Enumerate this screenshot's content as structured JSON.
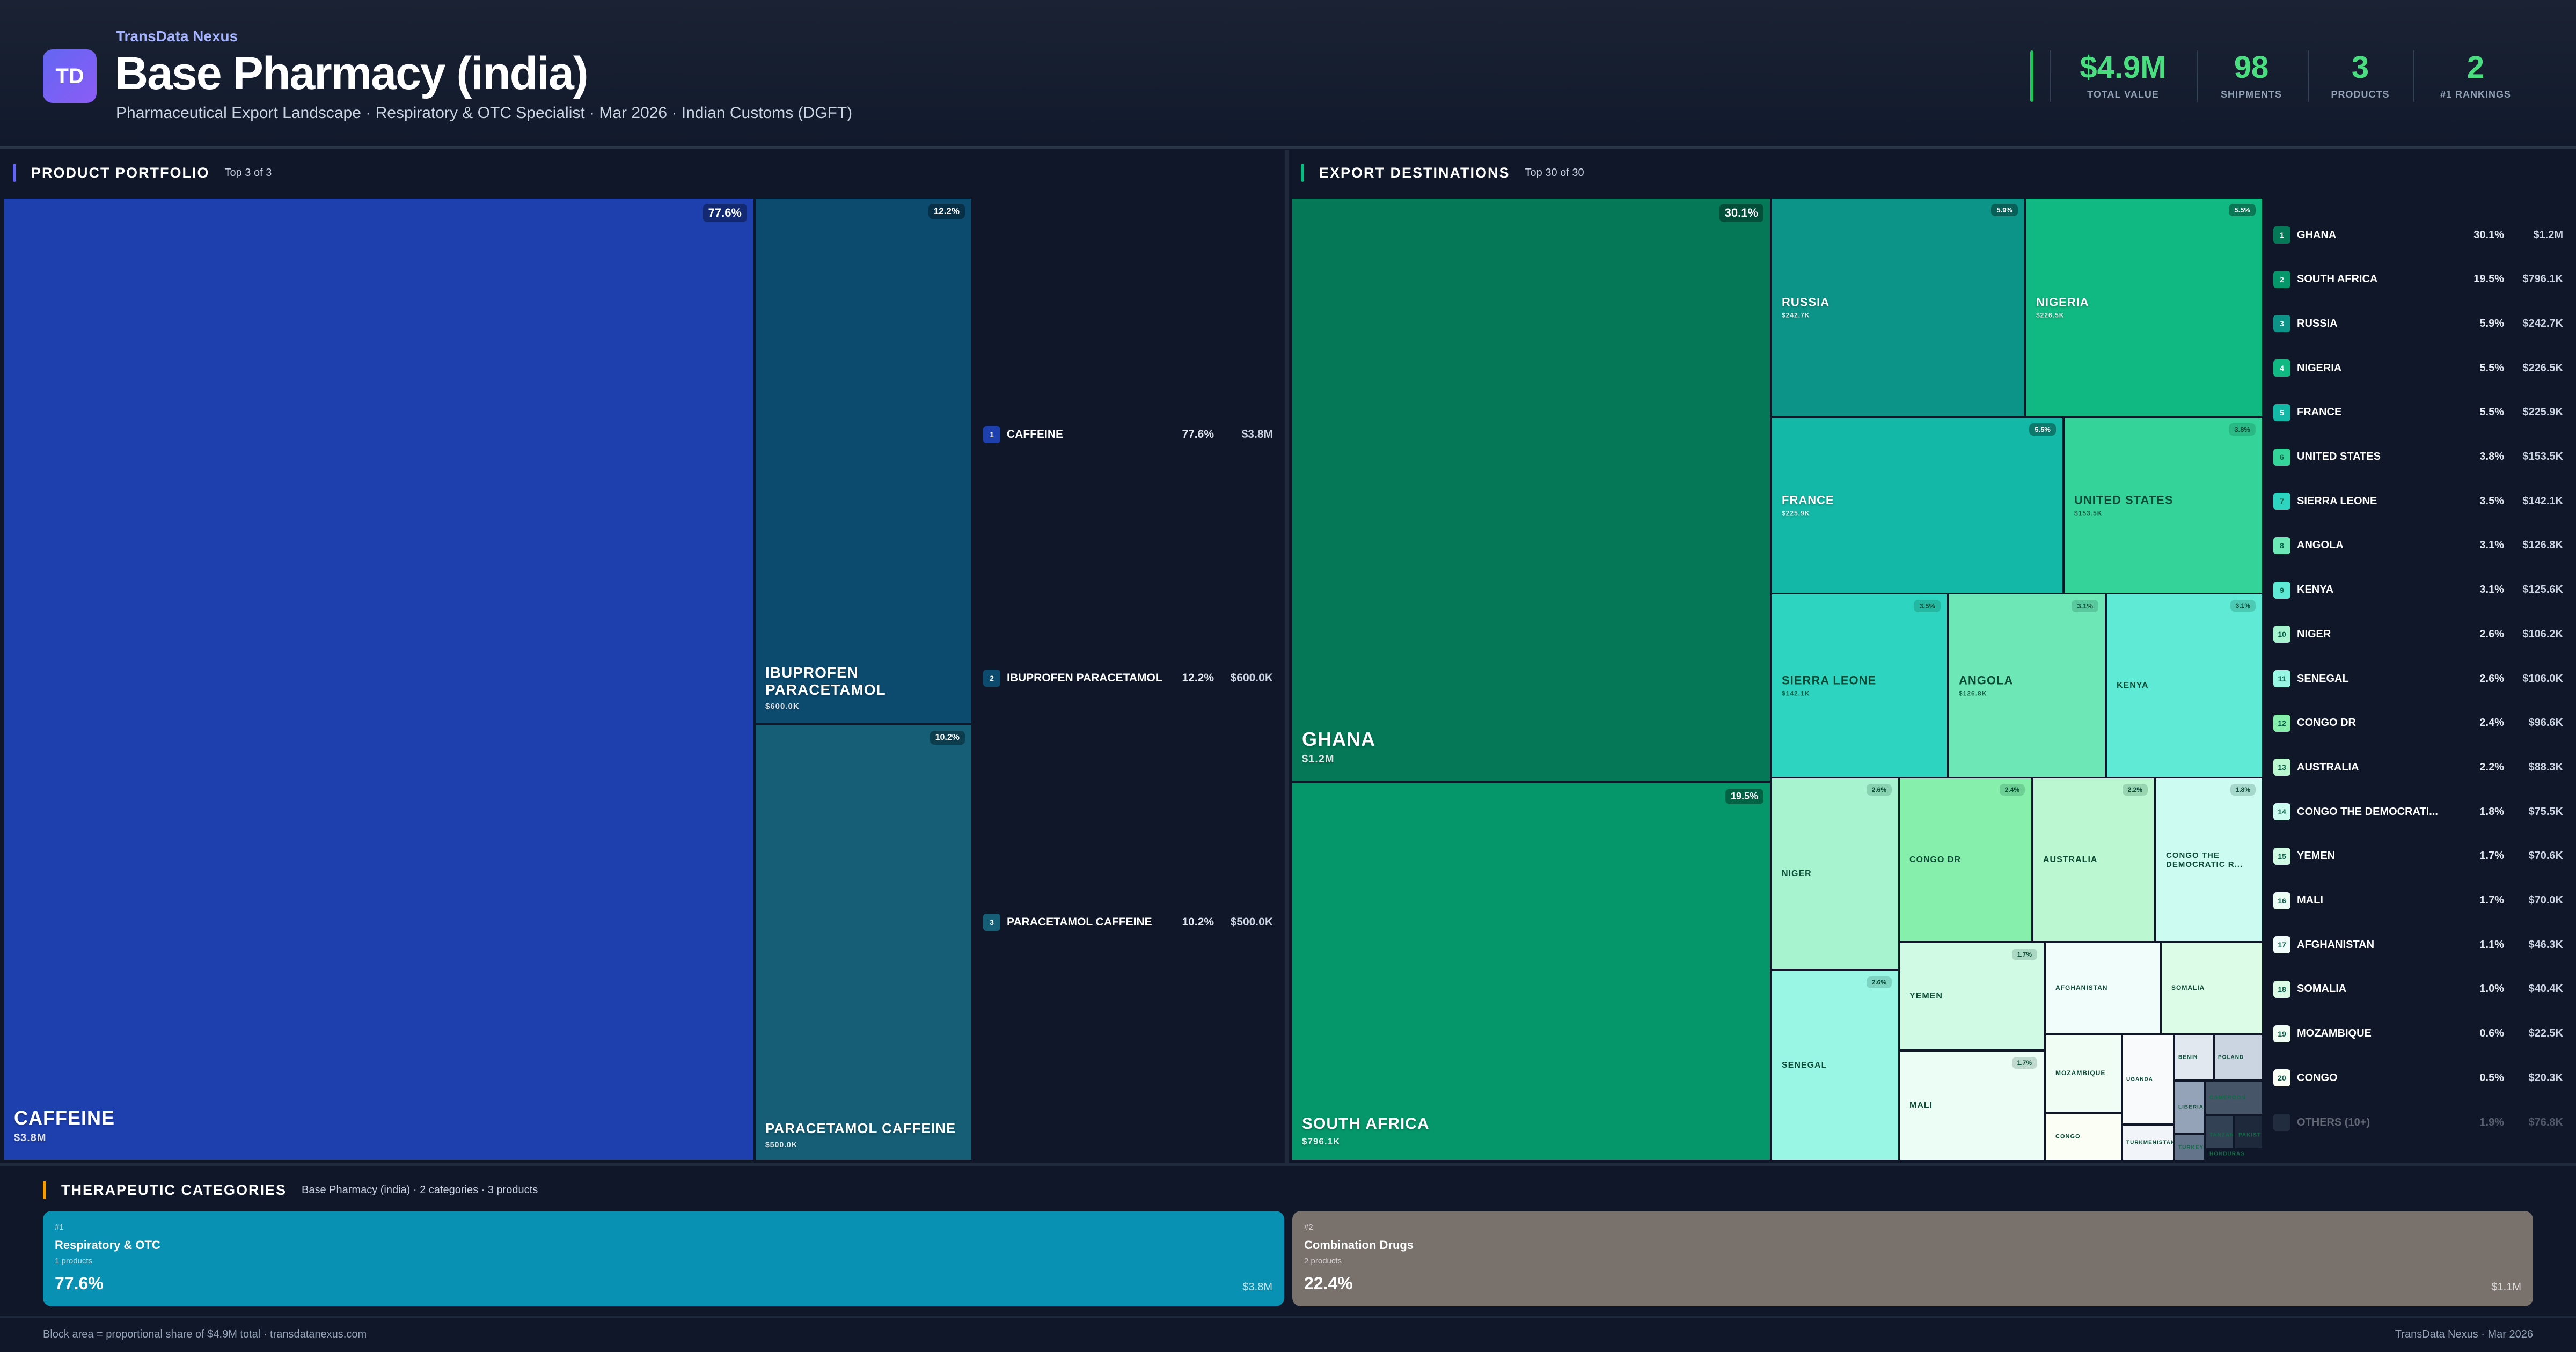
{
  "header": {
    "brand": "TransData Nexus",
    "logo": "TD",
    "title": "Base Pharmacy (india)",
    "subtitle": "Pharmaceutical Export Landscape · Respiratory & OTC Specialist · Mar 2026 · Indian Customs (DGFT)",
    "kpis": [
      {
        "value": "$4.9M",
        "label": "TOTAL VALUE"
      },
      {
        "value": "98",
        "label": "SHIPMENTS"
      },
      {
        "value": "3",
        "label": "PRODUCTS"
      },
      {
        "value": "2",
        "label": "#1 RANKINGS"
      }
    ],
    "accent": "#4ade80"
  },
  "products": {
    "title": "PRODUCT PORTFOLIO",
    "subtitle": "Top 3 of 3",
    "accent": "#6366f1",
    "items": [
      {
        "rank": "1",
        "name": "CAFFEINE",
        "pct": "77.6%",
        "value": "$3.8M",
        "color": "#1e40af"
      },
      {
        "rank": "2",
        "name": "IBUPROFEN PARACETAMOL",
        "pct": "12.2%",
        "value": "$600.0K",
        "color": "#0c4a6e"
      },
      {
        "rank": "3",
        "name": "PARACETAMOL CAFFEINE",
        "pct": "10.2%",
        "value": "$500.0K",
        "color": "#155e75"
      }
    ]
  },
  "destinations": {
    "title": "EXPORT DESTINATIONS",
    "subtitle": "Top 30 of 30",
    "accent": "#10b981",
    "items": [
      {
        "rank": "1",
        "name": "GHANA",
        "pct": "30.1%",
        "value": "$1.2M",
        "color": "#047857"
      },
      {
        "rank": "2",
        "name": "SOUTH AFRICA",
        "pct": "19.5%",
        "value": "$796.1K",
        "color": "#059669"
      },
      {
        "rank": "3",
        "name": "RUSSIA",
        "pct": "5.9%",
        "value": "$242.7K",
        "color": "#0d9488"
      },
      {
        "rank": "4",
        "name": "NIGERIA",
        "pct": "5.5%",
        "value": "$226.5K",
        "color": "#10b981"
      },
      {
        "rank": "5",
        "name": "FRANCE",
        "pct": "5.5%",
        "value": "$225.9K",
        "color": "#14b8a6"
      },
      {
        "rank": "6",
        "name": "UNITED STATES",
        "pct": "3.8%",
        "value": "$153.5K",
        "color": "#34d399"
      },
      {
        "rank": "7",
        "name": "SIERRA LEONE",
        "pct": "3.5%",
        "value": "$142.1K",
        "color": "#2dd4bf"
      },
      {
        "rank": "8",
        "name": "ANGOLA",
        "pct": "3.1%",
        "value": "$126.8K",
        "color": "#6ee7b7"
      },
      {
        "rank": "9",
        "name": "KENYA",
        "pct": "3.1%",
        "value": "$125.6K",
        "color": "#5eead4"
      },
      {
        "rank": "10",
        "name": "NIGER",
        "pct": "2.6%",
        "value": "$106.2K",
        "color": "#a7f3d0"
      },
      {
        "rank": "11",
        "name": "SENEGAL",
        "pct": "2.6%",
        "value": "$106.0K",
        "color": "#99f6e4"
      },
      {
        "rank": "12",
        "name": "CONGO DR",
        "pct": "2.4%",
        "value": "$96.6K",
        "color": "#86efac"
      },
      {
        "rank": "13",
        "name": "AUSTRALIA",
        "pct": "2.2%",
        "value": "$88.3K",
        "color": "#bbf7d0"
      },
      {
        "rank": "14",
        "name": "CONGO THE DEMOCRATI...",
        "tile_name": "CONGO THE DEMOCRATIC R...",
        "pct": "1.8%",
        "value": "$75.5K",
        "color": "#ccfbf1"
      },
      {
        "rank": "15",
        "name": "YEMEN",
        "pct": "1.7%",
        "value": "$70.6K",
        "color": "#d1fae5"
      },
      {
        "rank": "16",
        "name": "MALI",
        "pct": "1.7%",
        "value": "$70.0K",
        "color": "#ecfdf5"
      },
      {
        "rank": "17",
        "name": "AFGHANISTAN",
        "pct": "1.1%",
        "value": "$46.3K",
        "color": "#f0fdfa"
      },
      {
        "rank": "18",
        "name": "SOMALIA",
        "pct": "1.0%",
        "value": "$40.4K",
        "color": "#dcfce7"
      },
      {
        "rank": "19",
        "name": "MOZAMBIQUE",
        "pct": "0.6%",
        "value": "$22.5K",
        "color": "#f0fdf4"
      },
      {
        "rank": "20",
        "name": "CONGO",
        "pct": "0.5%",
        "value": "$20.3K",
        "color": "#fafef5"
      }
    ],
    "others": {
      "name": "OTHERS (10+)",
      "pct": "1.9%",
      "value": "$76.8K",
      "color": "#475569"
    },
    "small_tiles": [
      {
        "name": "UGANDA",
        "color": "#f8fafc"
      },
      {
        "name": "TURKMENISTAN",
        "color": "#f1f5f9"
      },
      {
        "name": "BENIN",
        "color": "#e2e8f0"
      },
      {
        "name": "POLAND",
        "color": "#cbd5e1"
      },
      {
        "name": "LIBERIA",
        "color": "#94a3b8"
      },
      {
        "name": "CAMEROON",
        "color": "#475569"
      },
      {
        "name": "TURKEY",
        "color": "#64748b"
      },
      {
        "name": "TANZAN",
        "color": "#334155"
      },
      {
        "name": "PAKIST",
        "color": "#1e293b"
      },
      {
        "name": "HONDURAS",
        "color": "#0f1729"
      }
    ]
  },
  "categories": {
    "title": "THERAPEUTIC CATEGORIES",
    "subtitle": "Base Pharmacy (india) · 2 categories · 3 products",
    "accent": "#f59e0b",
    "items": [
      {
        "rank": "#1",
        "name": "Respiratory & OTC",
        "count": "1 products",
        "pct": "77.6%",
        "value": "$3.8M",
        "color": "#0891b2"
      },
      {
        "rank": "#2",
        "name": "Combination Drugs",
        "count": "2 products",
        "pct": "22.4%",
        "value": "$1.1M",
        "color": "#78716c"
      }
    ]
  },
  "footer": {
    "left": "Block area = proportional share of $4.9M total · transdatanexus.com",
    "right": "TransData Nexus · Mar 2026"
  }
}
